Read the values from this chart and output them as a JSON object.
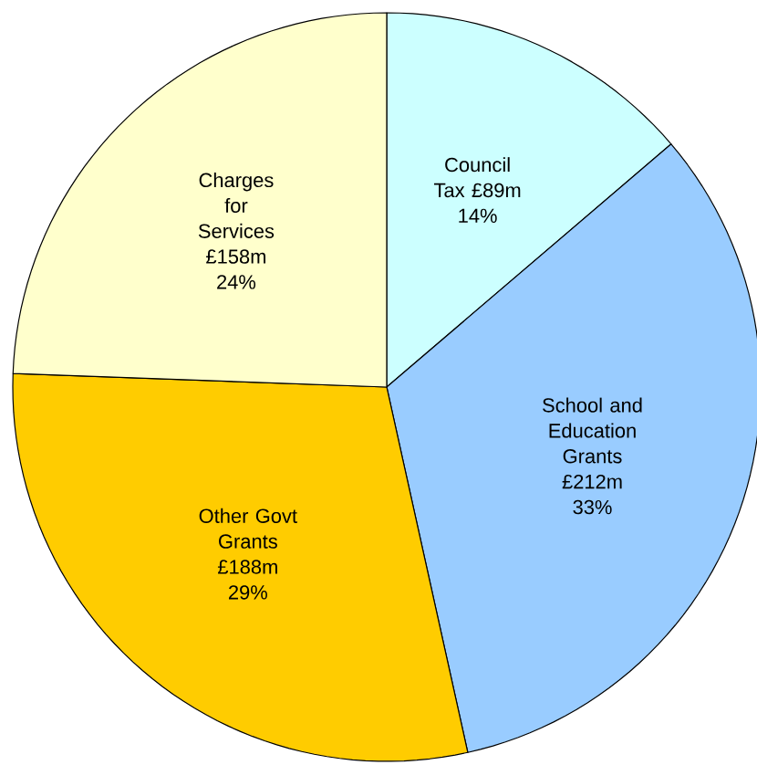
{
  "chart_data": {
    "type": "pie",
    "categories": [
      "Council Tax",
      "School and Education Grants",
      "Other Govt Grants",
      "Charges for Services"
    ],
    "values": [
      89,
      212,
      188,
      158
    ],
    "colors": [
      "#ccffff",
      "#99ccff",
      "#ffcc00",
      "#ffffcc"
    ],
    "value_labels": [
      "£89m",
      "£212m",
      "£188m",
      "£158m"
    ],
    "annotations": [
      "14%",
      "33%",
      "29%",
      "24%"
    ]
  }
}
